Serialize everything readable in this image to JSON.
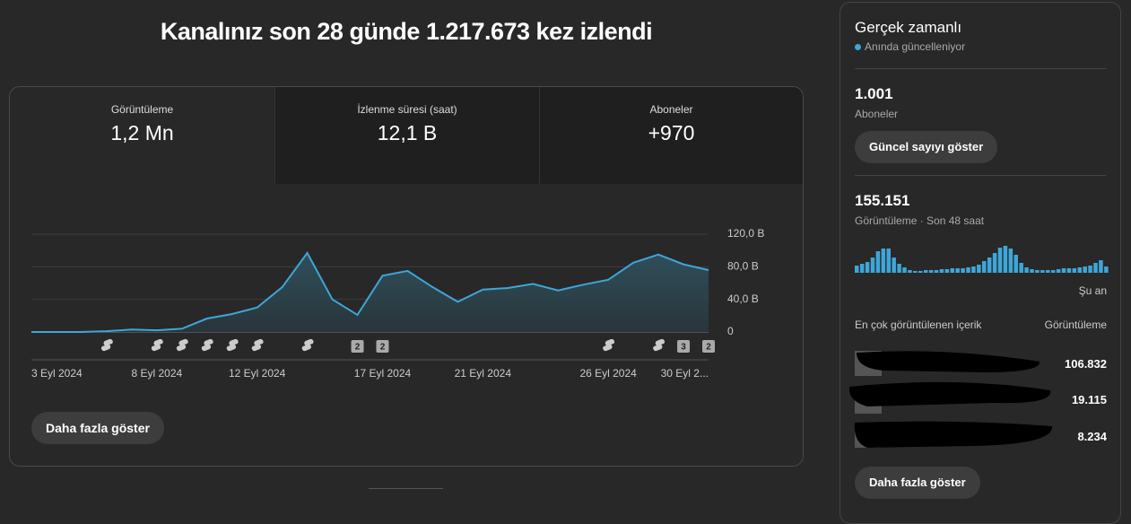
{
  "header": {
    "title": "Kanalınız son 28 günde 1.217.673 kez izlendi"
  },
  "metrics": [
    {
      "label": "Görüntüleme",
      "value": "1,2 Mn"
    },
    {
      "label": "İzlenme süresi (saat)",
      "value": "12,1 B"
    },
    {
      "label": "Aboneler",
      "value": "+970"
    }
  ],
  "chart_data": {
    "type": "area",
    "categories": [
      "3 Eyl 2024",
      null,
      null,
      null,
      null,
      "8 Eyl 2024",
      null,
      null,
      null,
      "12 Eyl 2024",
      null,
      null,
      null,
      null,
      "17 Eyl 2024",
      null,
      null,
      null,
      "21 Eyl 2024",
      null,
      null,
      null,
      null,
      "26 Eyl 2024",
      null,
      null,
      null,
      "30 Eyl 2..."
    ],
    "series": [
      {
        "color": "#3ea6d8",
        "values": [
          0,
          0,
          0,
          1,
          3,
          2,
          4,
          16.5,
          22,
          30,
          55,
          97,
          40,
          21,
          69,
          75,
          55,
          37,
          52,
          54,
          59,
          51,
          58,
          64,
          85,
          95,
          83,
          76
        ]
      }
    ],
    "uploads": [
      0,
      0,
      0,
      1,
      0,
      1,
      1,
      1,
      1,
      1,
      0,
      1,
      0,
      2,
      2,
      0,
      0,
      0,
      0,
      0,
      0,
      0,
      0,
      1,
      0,
      1,
      3,
      2
    ],
    "ylim": [
      0,
      120
    ],
    "yticks": [
      0,
      {
        "value": 40,
        "label": "40,0 B"
      },
      {
        "value": 80,
        "label": "80,0 B"
      },
      {
        "value": 120,
        "label": "120,0 B"
      }
    ],
    "grid": true
  },
  "more_button": "Daha fazla göster",
  "realtime": {
    "title": "Gerçek zamanlı",
    "subtitle": "Anında güncelleniyor",
    "subscribers": "1.001",
    "subscribers_label": "Aboneler",
    "button": "Güncel sayıyı göster",
    "views": "155.151",
    "views_label": "Görüntüleme · Son 48 saat",
    "chart_data": {
      "type": "bar",
      "color": "#3ea6d8",
      "values": [
        8,
        10,
        12,
        17,
        24,
        27,
        27,
        17,
        10,
        6,
        3,
        2,
        2,
        3,
        3,
        3,
        4,
        4,
        5,
        5,
        5,
        6,
        7,
        9,
        13,
        17,
        22,
        28,
        30,
        27,
        20,
        11,
        6,
        4,
        3,
        3,
        3,
        3,
        4,
        5,
        5,
        5,
        6,
        7,
        8,
        11,
        14,
        7
      ],
      "x_end_label": "Şu an"
    },
    "top_content": {
      "heading": "En çok görüntülenen içerik",
      "column": "Görüntüleme",
      "items": [
        {
          "views": "106.832"
        },
        {
          "views": "19.115"
        },
        {
          "views": "8.234"
        }
      ]
    },
    "more_button": "Daha fazla göster"
  }
}
